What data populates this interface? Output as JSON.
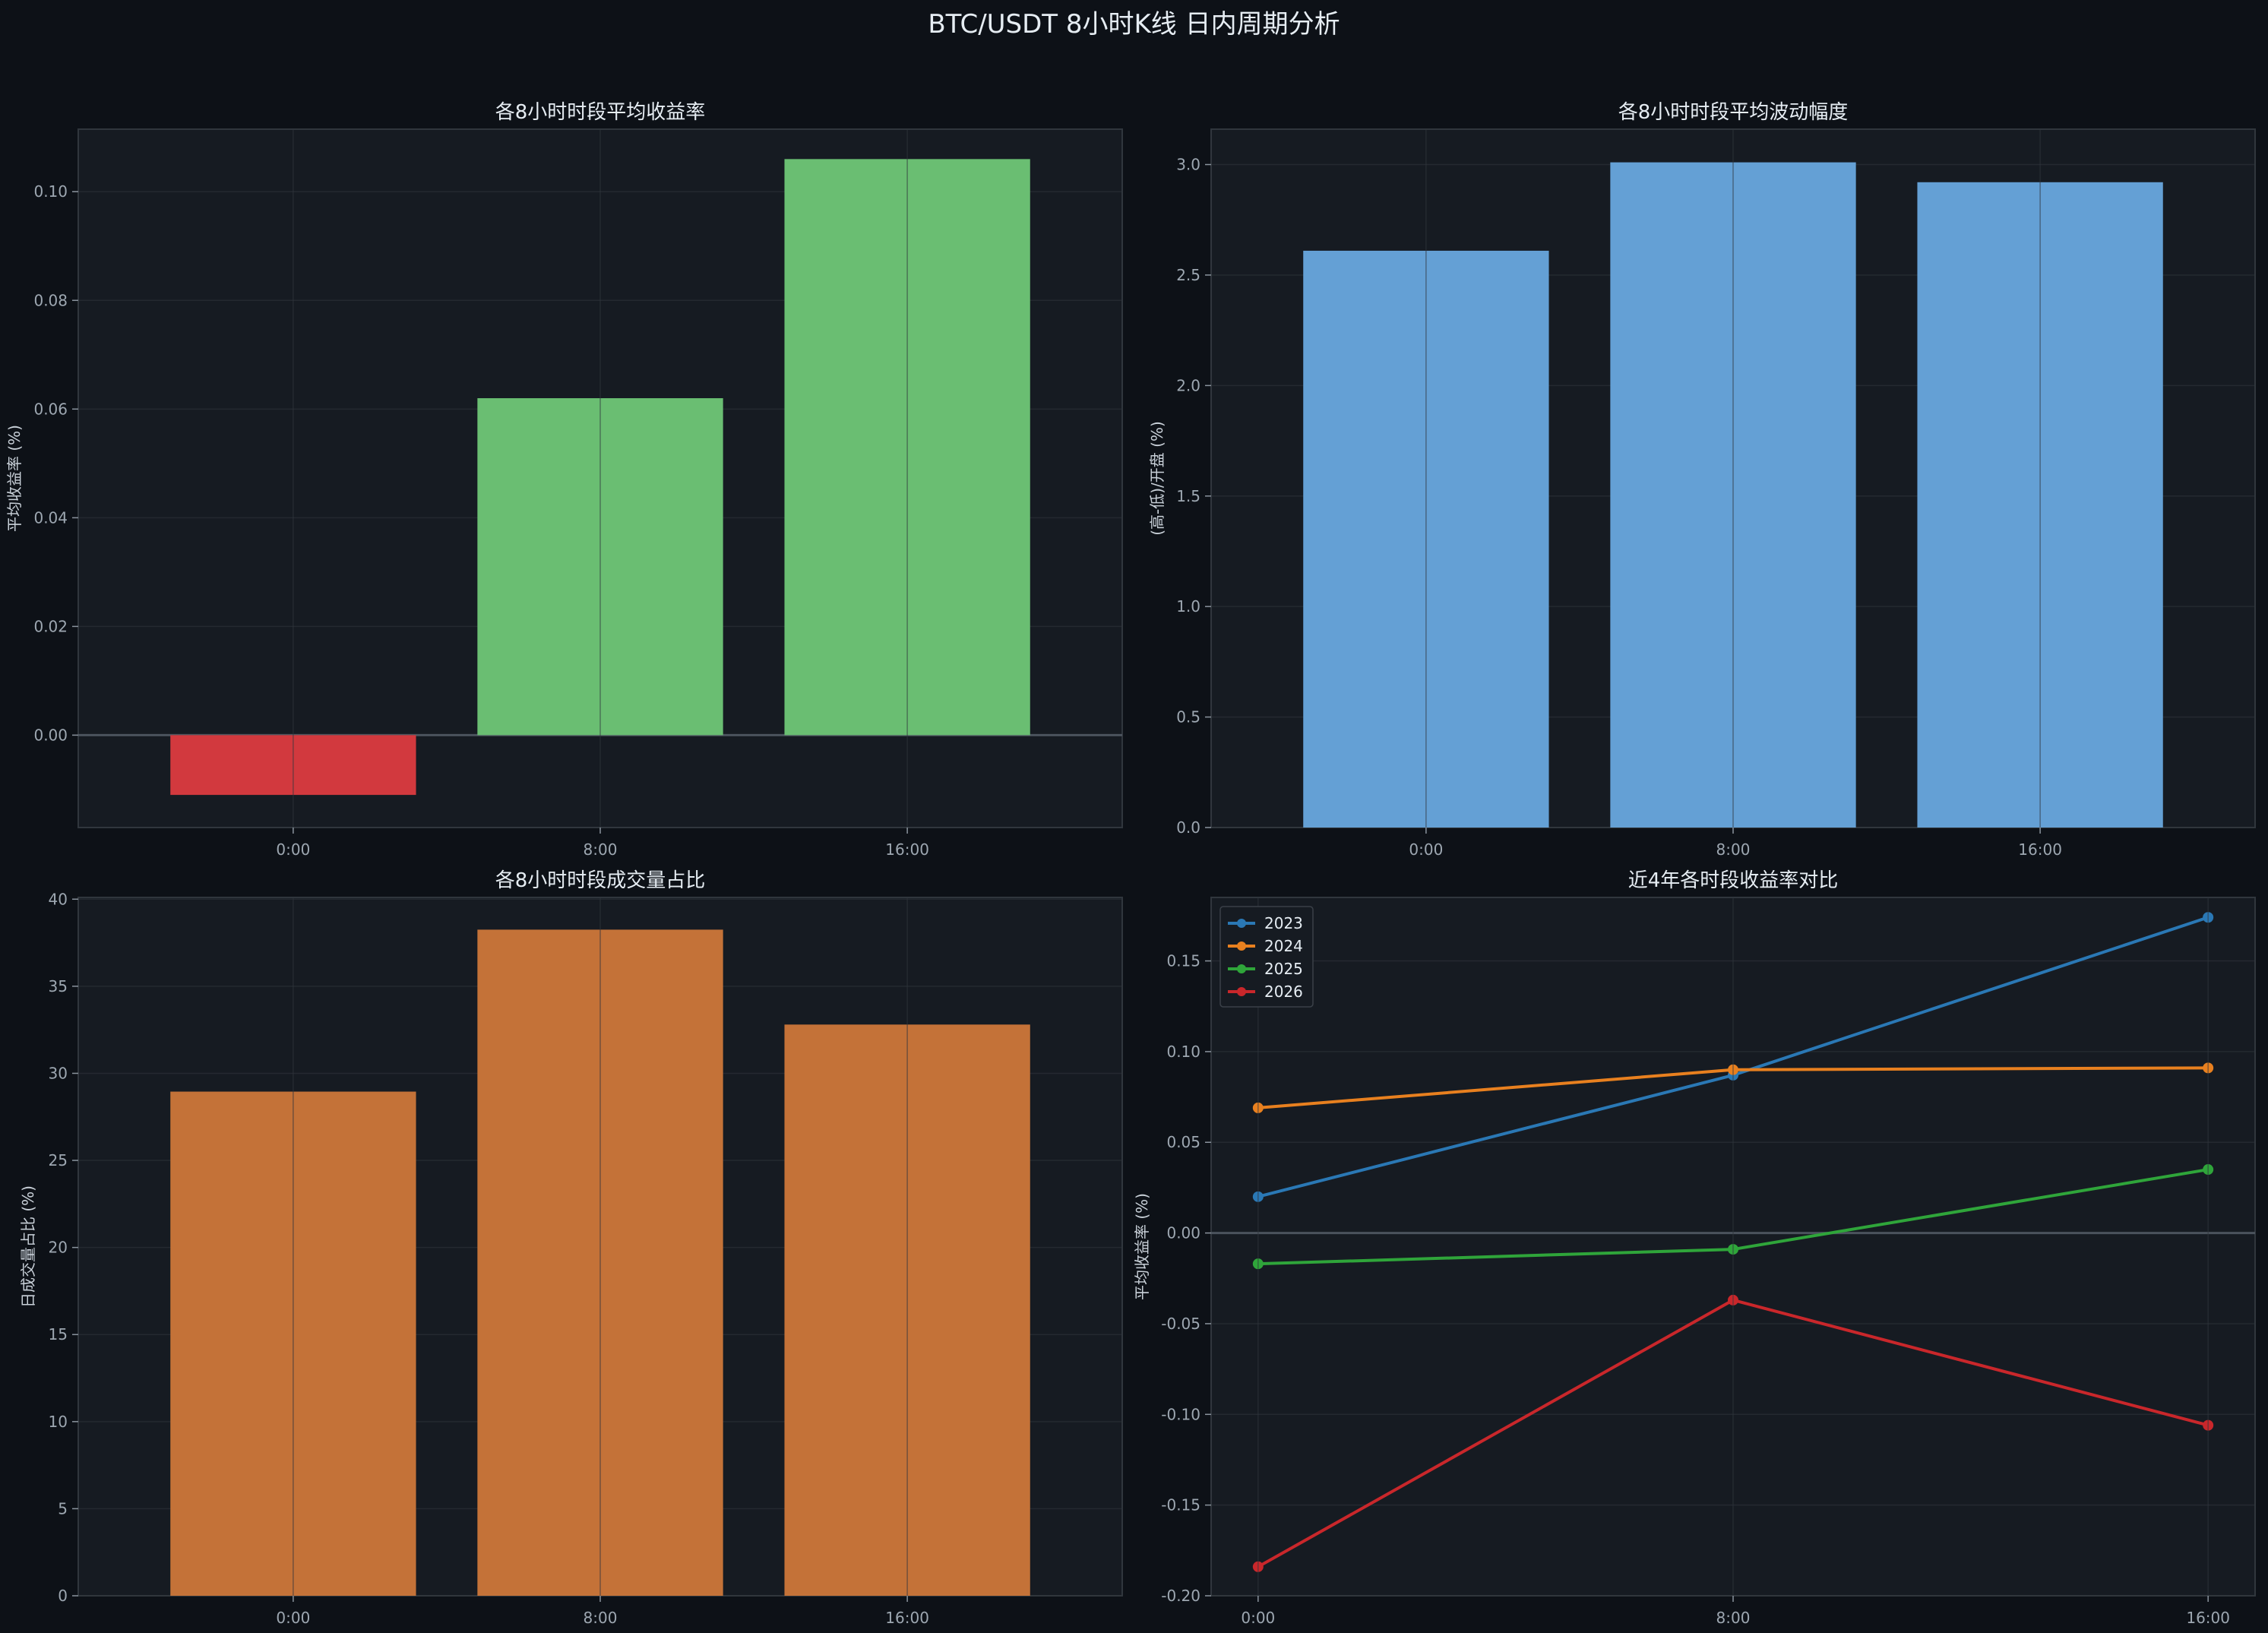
{
  "page_title": "BTC/USDT 8小时K线 日内周期分析",
  "chart_data": [
    {
      "type": "bar",
      "title": "各8小时时段平均收益率",
      "xlabel": "",
      "ylabel": "平均收益率 (%)",
      "categories": [
        "0:00",
        "8:00",
        "16:00"
      ],
      "values": [
        -0.011,
        0.062,
        0.106
      ],
      "ylim": [
        -0.017,
        0.1115
      ],
      "yticks": [
        0.0,
        0.02,
        0.04,
        0.06,
        0.08,
        0.1
      ],
      "ytick_labels": [
        "0.00",
        "0.02",
        "0.04",
        "0.06",
        "0.08",
        "0.10"
      ],
      "zero_line": true,
      "colors": {
        "positive": "#6abe72",
        "negative": "#d2393e"
      },
      "grid": true
    },
    {
      "type": "bar",
      "title": "各8小时时段平均波动幅度",
      "xlabel": "",
      "ylabel": "(高-低)/开盘 (%)",
      "categories": [
        "0:00",
        "8:00",
        "16:00"
      ],
      "values": [
        2.61,
        3.01,
        2.92
      ],
      "ylim": [
        0,
        3.16
      ],
      "yticks": [
        0.0,
        0.5,
        1.0,
        1.5,
        2.0,
        2.5,
        3.0
      ],
      "ytick_labels": [
        "0.0",
        "0.5",
        "1.0",
        "1.5",
        "2.0",
        "2.5",
        "3.0"
      ],
      "colors": {
        "bar": "#64a0d5"
      },
      "grid": true
    },
    {
      "type": "bar",
      "title": "各8小时时段成交量占比",
      "xlabel": "",
      "ylabel": "日成交量占比 (%)",
      "categories": [
        "0:00",
        "8:00",
        "16:00"
      ],
      "values": [
        28.95,
        38.25,
        32.8
      ],
      "ylim": [
        0,
        40.1
      ],
      "yticks": [
        0,
        5,
        10,
        15,
        20,
        25,
        30,
        35,
        40
      ],
      "ytick_labels": [
        "0",
        "5",
        "10",
        "15",
        "20",
        "25",
        "30",
        "35",
        "40"
      ],
      "colors": {
        "bar": "#c47238"
      },
      "grid": true
    },
    {
      "type": "line",
      "title": "近4年各时段收益率对比",
      "xlabel": "",
      "ylabel": "平均收益率 (%)",
      "categories": [
        "0:00",
        "8:00",
        "16:00"
      ],
      "series": [
        {
          "name": "2023",
          "values": [
            0.02,
            0.087,
            0.174
          ],
          "color": "#2a78b5"
        },
        {
          "name": "2024",
          "values": [
            0.069,
            0.09,
            0.091
          ],
          "color": "#e8801f"
        },
        {
          "name": "2025",
          "values": [
            -0.017,
            -0.009,
            0.035
          ],
          "color": "#2fa53a"
        },
        {
          "name": "2026",
          "values": [
            -0.184,
            -0.037,
            -0.106
          ],
          "color": "#c9272b"
        }
      ],
      "ylim": [
        -0.2,
        0.185
      ],
      "yticks": [
        -0.2,
        -0.15,
        -0.1,
        -0.05,
        0.0,
        0.05,
        0.1,
        0.15
      ],
      "ytick_labels": [
        "-0.20",
        "-0.15",
        "-0.10",
        "-0.05",
        "0.00",
        "0.05",
        "0.10",
        "0.15"
      ],
      "zero_line": true,
      "legend": "top-left",
      "grid": true
    }
  ]
}
